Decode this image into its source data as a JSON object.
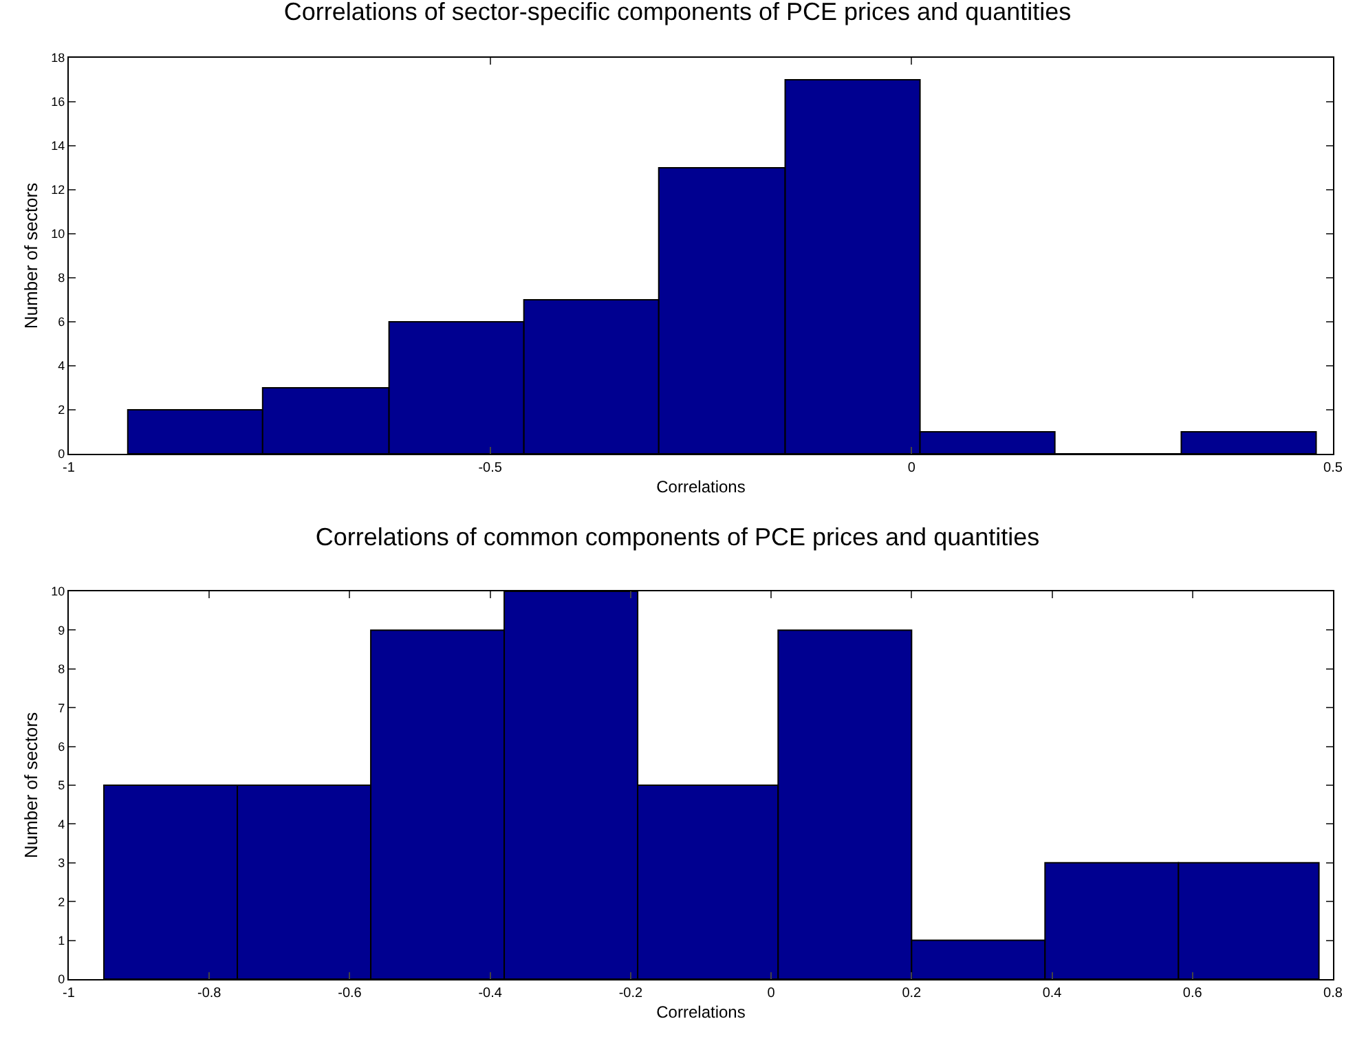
{
  "chart_data": [
    {
      "type": "histogram",
      "title": "Correlations of sector-specific components of PCE prices and quantities",
      "xlabel": "Correlations",
      "ylabel": "Number of sectors",
      "bins": [
        -0.93,
        -0.77,
        -0.62,
        -0.46,
        -0.3,
        -0.15,
        0.01,
        0.17,
        0.32,
        0.48
      ],
      "values": [
        2,
        3,
        6,
        7,
        13,
        17,
        1,
        0,
        1
      ],
      "color": "#000090",
      "xlim": [
        -1,
        0.5
      ],
      "xticks": [
        -1,
        -0.5,
        0,
        0.5
      ],
      "ylim": [
        0,
        18
      ],
      "yticks": [
        0,
        2,
        4,
        6,
        8,
        10,
        12,
        14,
        16,
        18
      ],
      "grid": false
    },
    {
      "type": "histogram",
      "title": "Correlations of common components of PCE prices and quantities",
      "xlabel": "Correlations",
      "ylabel": "Number of sectors",
      "bins": [
        -0.95,
        -0.76,
        -0.57,
        -0.38,
        -0.19,
        0.01,
        0.2,
        0.39,
        0.58,
        0.78
      ],
      "values": [
        5,
        5,
        9,
        10,
        5,
        9,
        1,
        3,
        3
      ],
      "color": "#000090",
      "xlim": [
        -1,
        0.8
      ],
      "xticks": [
        -1,
        -0.8,
        -0.6,
        -0.4,
        -0.2,
        0,
        0.2,
        0.4,
        0.6,
        0.8
      ],
      "ylim": [
        0,
        10
      ],
      "yticks": [
        0,
        1,
        2,
        3,
        4,
        5,
        6,
        7,
        8,
        9,
        10
      ],
      "grid": false
    }
  ]
}
